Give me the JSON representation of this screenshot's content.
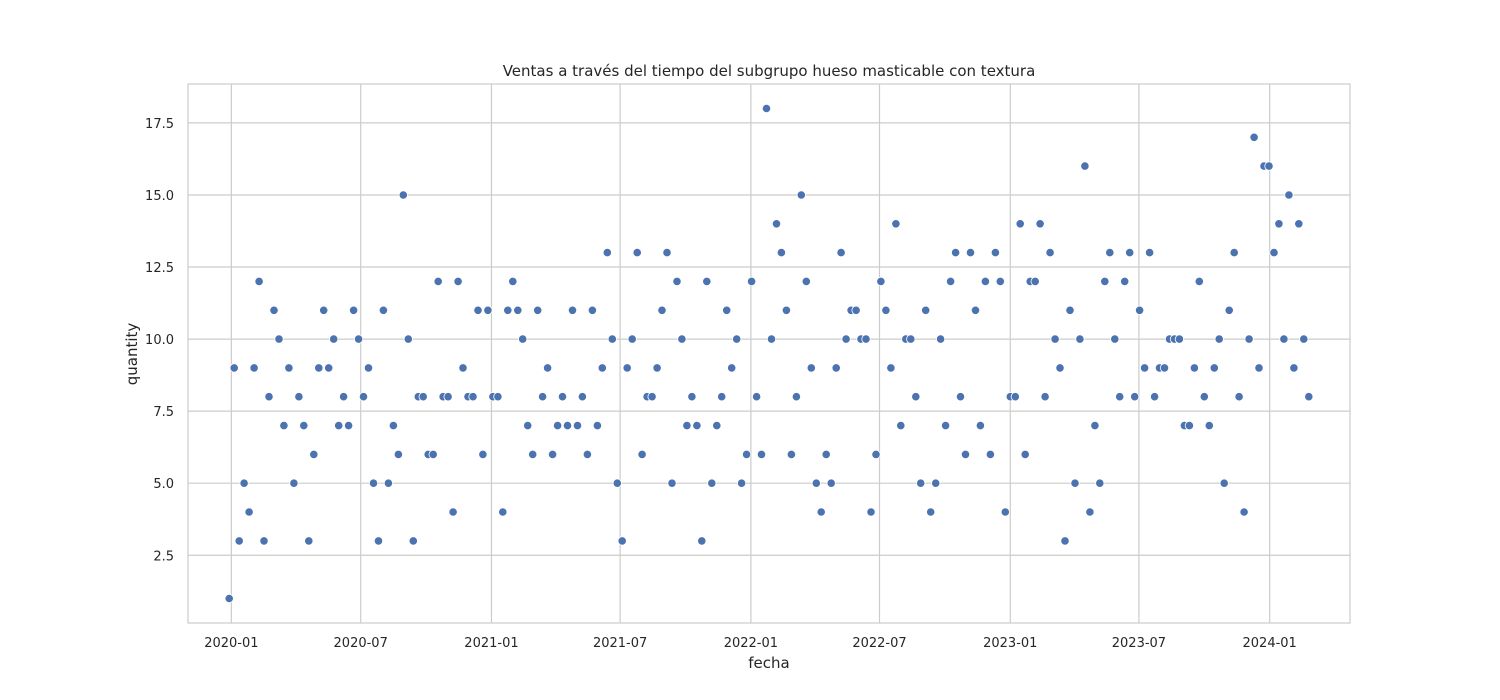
{
  "chart_data": {
    "type": "scatter",
    "title": "Ventas a través del tiempo del subgrupo hueso masticable con textura",
    "xlabel": "fecha",
    "ylabel": "quantity",
    "x_ticks": [
      "2020-01",
      "2020-07",
      "2021-01",
      "2021-07",
      "2022-01",
      "2022-07",
      "2023-01",
      "2023-07",
      "2024-01"
    ],
    "y_ticks": [
      "2.5",
      "5.0",
      "7.5",
      "10.0",
      "12.5",
      "15.0",
      "17.5"
    ],
    "xlim": [
      "2019-11-01",
      "2024-04-23"
    ],
    "ylim": [
      0.15,
      18.85
    ],
    "grid": true,
    "point_color": "#4c72b0",
    "x": [
      "2019-12-29",
      "2020-01-05",
      "2020-01-12",
      "2020-01-19",
      "2020-01-26",
      "2020-02-02",
      "2020-02-09",
      "2020-02-16",
      "2020-02-23",
      "2020-03-01",
      "2020-03-08",
      "2020-03-15",
      "2020-03-22",
      "2020-03-29",
      "2020-04-05",
      "2020-04-12",
      "2020-04-19",
      "2020-04-26",
      "2020-05-03",
      "2020-05-10",
      "2020-05-17",
      "2020-05-24",
      "2020-05-31",
      "2020-06-07",
      "2020-06-14",
      "2020-06-21",
      "2020-06-28",
      "2020-07-05",
      "2020-07-12",
      "2020-07-19",
      "2020-07-26",
      "2020-08-02",
      "2020-08-09",
      "2020-08-16",
      "2020-08-23",
      "2020-08-30",
      "2020-09-06",
      "2020-09-13",
      "2020-09-20",
      "2020-09-27",
      "2020-10-04",
      "2020-10-11",
      "2020-10-18",
      "2020-10-25",
      "2020-11-01",
      "2020-11-08",
      "2020-11-15",
      "2020-11-22",
      "2020-11-29",
      "2020-12-06",
      "2020-12-13",
      "2020-12-20",
      "2020-12-27",
      "2021-01-03",
      "2021-01-10",
      "2021-01-17",
      "2021-01-24",
      "2021-01-31",
      "2021-02-07",
      "2021-02-14",
      "2021-02-21",
      "2021-02-28",
      "2021-03-07",
      "2021-03-14",
      "2021-03-21",
      "2021-03-28",
      "2021-04-04",
      "2021-04-11",
      "2021-04-18",
      "2021-04-25",
      "2021-05-02",
      "2021-05-09",
      "2021-05-16",
      "2021-05-23",
      "2021-05-30",
      "2021-06-06",
      "2021-06-13",
      "2021-06-20",
      "2021-06-27",
      "2021-07-04",
      "2021-07-11",
      "2021-07-18",
      "2021-07-25",
      "2021-08-01",
      "2021-08-08",
      "2021-08-15",
      "2021-08-22",
      "2021-08-29",
      "2021-09-05",
      "2021-09-12",
      "2021-09-19",
      "2021-09-26",
      "2021-10-03",
      "2021-10-10",
      "2021-10-17",
      "2021-10-24",
      "2021-10-31",
      "2021-11-07",
      "2021-11-14",
      "2021-11-21",
      "2021-11-28",
      "2021-12-05",
      "2021-12-12",
      "2021-12-19",
      "2021-12-26",
      "2022-01-02",
      "2022-01-09",
      "2022-01-16",
      "2022-01-23",
      "2022-01-30",
      "2022-02-06",
      "2022-02-13",
      "2022-02-20",
      "2022-02-27",
      "2022-03-06",
      "2022-03-13",
      "2022-03-20",
      "2022-03-27",
      "2022-04-03",
      "2022-04-10",
      "2022-04-17",
      "2022-04-24",
      "2022-05-01",
      "2022-05-08",
      "2022-05-15",
      "2022-05-22",
      "2022-05-29",
      "2022-06-05",
      "2022-06-12",
      "2022-06-19",
      "2022-06-26",
      "2022-07-03",
      "2022-07-10",
      "2022-07-17",
      "2022-07-24",
      "2022-07-31",
      "2022-08-07",
      "2022-08-14",
      "2022-08-21",
      "2022-08-28",
      "2022-09-04",
      "2022-09-11",
      "2022-09-18",
      "2022-09-25",
      "2022-10-02",
      "2022-10-09",
      "2022-10-16",
      "2022-10-23",
      "2022-10-30",
      "2022-11-06",
      "2022-11-13",
      "2022-11-20",
      "2022-11-27",
      "2022-12-04",
      "2022-12-11",
      "2022-12-18",
      "2022-12-25",
      "2023-01-01",
      "2023-01-08",
      "2023-01-15",
      "2023-01-22",
      "2023-01-29",
      "2023-02-05",
      "2023-02-12",
      "2023-02-19",
      "2023-02-26",
      "2023-03-05",
      "2023-03-12",
      "2023-03-19",
      "2023-03-26",
      "2023-04-02",
      "2023-04-09",
      "2023-04-16",
      "2023-04-23",
      "2023-04-30",
      "2023-05-07",
      "2023-05-14",
      "2023-05-21",
      "2023-05-28",
      "2023-06-04",
      "2023-06-11",
      "2023-06-18",
      "2023-06-25",
      "2023-07-02",
      "2023-07-09",
      "2023-07-16",
      "2023-07-23",
      "2023-07-30",
      "2023-08-06",
      "2023-08-13",
      "2023-08-20",
      "2023-08-27",
      "2023-09-03",
      "2023-09-10",
      "2023-09-17",
      "2023-09-24",
      "2023-10-01",
      "2023-10-08",
      "2023-10-15",
      "2023-10-22",
      "2023-10-29",
      "2023-11-05",
      "2023-11-12",
      "2023-11-19",
      "2023-11-26",
      "2023-12-03",
      "2023-12-10",
      "2023-12-17",
      "2023-12-24",
      "2023-12-31",
      "2024-01-07",
      "2024-01-14",
      "2024-01-21",
      "2024-01-28",
      "2024-02-04",
      "2024-02-11",
      "2024-02-18",
      "2024-02-25"
    ],
    "y": [
      1,
      9,
      3,
      5,
      4,
      9,
      12,
      3,
      8,
      11,
      10,
      7,
      9,
      5,
      8,
      7,
      3,
      6,
      9,
      11,
      9,
      10,
      7,
      8,
      7,
      11,
      10,
      8,
      9,
      5,
      3,
      11,
      5,
      7,
      6,
      15,
      10,
      3,
      8,
      8,
      6,
      6,
      12,
      8,
      8,
      4,
      12,
      9,
      8,
      8,
      11,
      6,
      11,
      8,
      8,
      4,
      11,
      12,
      11,
      10,
      7,
      6,
      11,
      8,
      9,
      6,
      7,
      8,
      7,
      11,
      7,
      8,
      6,
      11,
      7,
      9,
      13,
      10,
      5,
      3,
      9,
      10,
      13,
      6,
      8,
      8,
      9,
      11,
      13,
      5,
      12,
      10,
      7,
      8,
      7,
      3,
      12,
      5,
      7,
      8,
      11,
      9,
      10,
      5,
      6,
      12,
      8,
      6,
      18,
      10,
      14,
      13,
      11,
      6,
      8,
      15,
      12,
      9,
      5,
      4,
      6,
      5,
      9,
      13,
      10,
      11,
      11,
      10,
      10,
      4,
      6,
      12,
      11,
      9,
      14,
      7,
      10,
      10,
      8,
      5,
      11,
      4,
      5,
      10,
      7,
      12,
      13,
      8,
      6,
      13,
      11,
      7,
      12,
      6,
      13,
      12,
      4,
      8,
      8,
      14,
      6,
      12,
      12,
      14,
      8,
      13,
      10,
      9,
      3,
      11,
      5,
      10,
      16,
      4,
      7,
      5,
      12,
      13,
      10,
      8,
      12,
      13,
      8,
      11,
      9,
      13,
      8,
      9,
      9,
      10,
      10,
      10,
      7,
      7,
      9,
      12,
      8,
      7,
      9,
      10,
      5,
      11,
      13,
      8,
      4,
      10,
      17,
      9,
      16,
      16,
      13,
      14,
      10,
      15,
      9,
      14,
      10,
      8
    ]
  }
}
